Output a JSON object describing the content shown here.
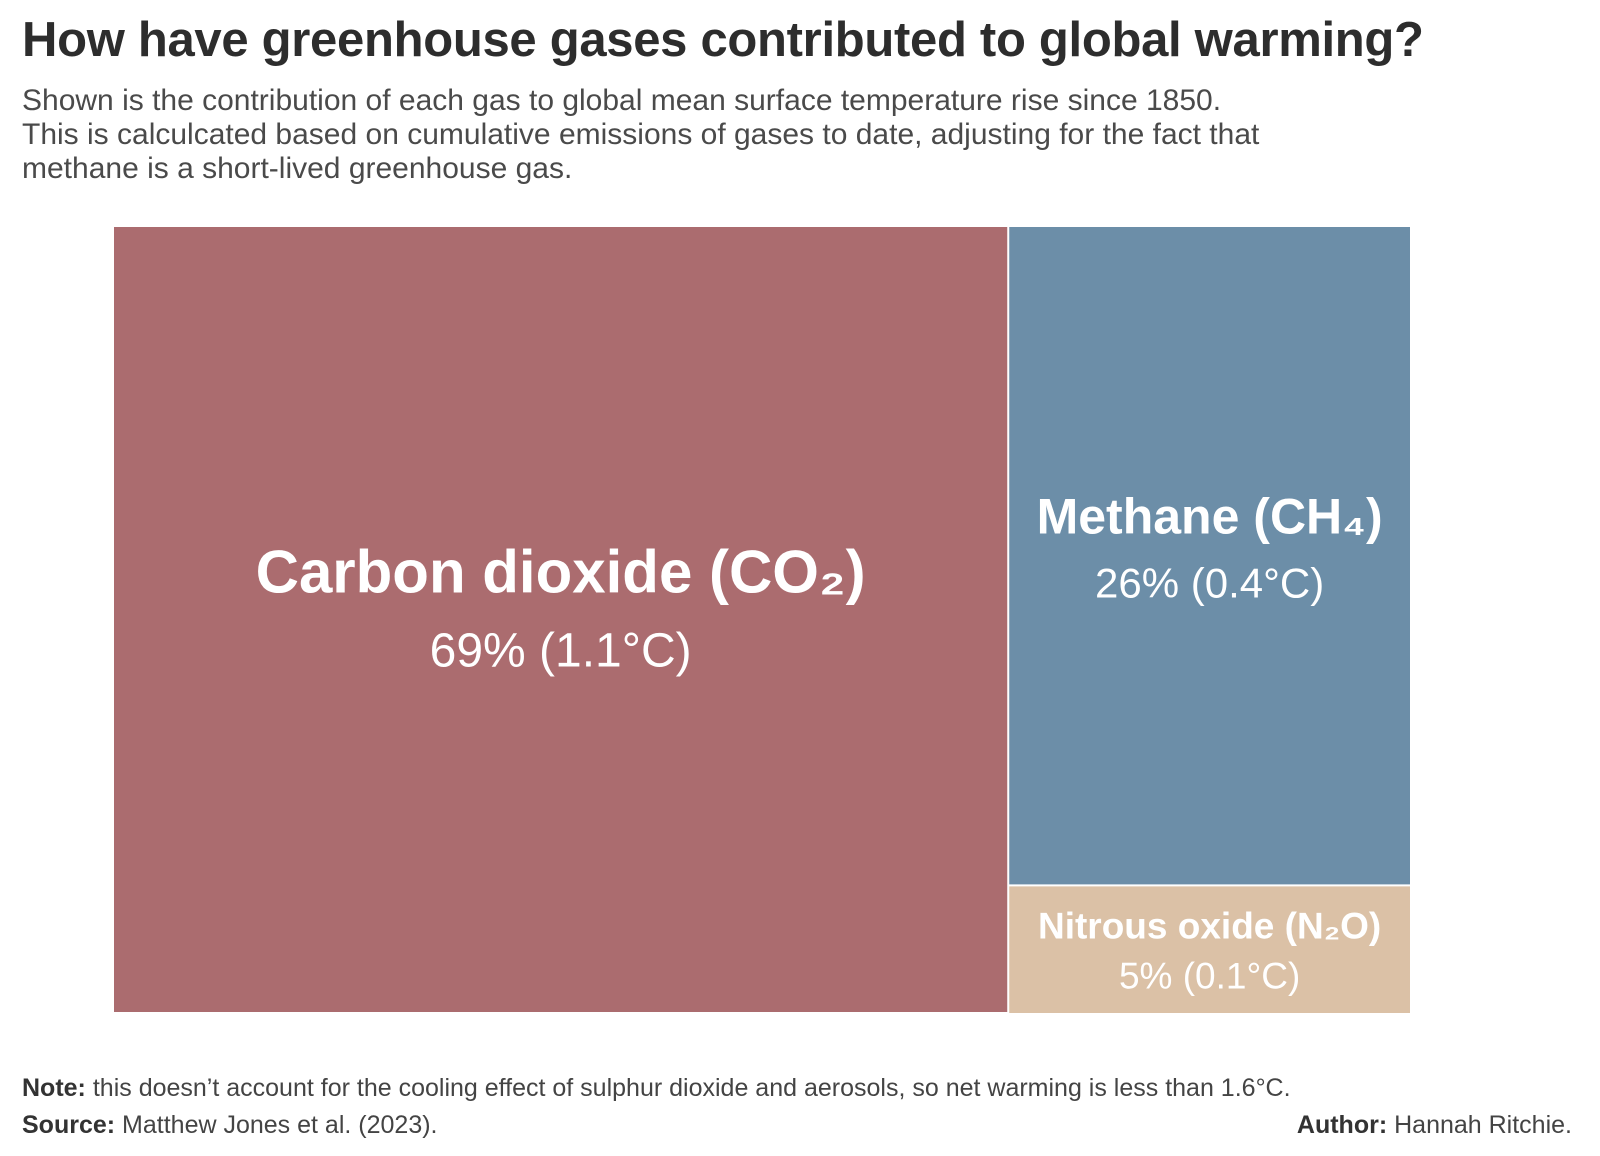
{
  "title": "How have greenhouse gases contributed to global warming?",
  "subtitle": [
    "Shown is the contribution of each gas to global mean surface temperature rise since 1850.",
    "This is calculcated based on cumulative emissions of gases to date, adjusting for the fact that",
    "methane is a short-lived greenhouse gas."
  ],
  "chart_data": {
    "type": "treemap",
    "unit": "%",
    "items": [
      {
        "name": "Carbon dioxide (CO₂)",
        "value": 69,
        "warming": "1.1°C",
        "label": "69% (1.1°C)",
        "color": "#ab6c6f"
      },
      {
        "name": "Methane (CH₄)",
        "value": 26,
        "warming": "0.4°C",
        "label": "26% (0.4°C)",
        "color": "#6c8ea8"
      },
      {
        "name": "Nitrous oxide (N₂O)",
        "value": 5,
        "warming": "0.1°C",
        "label": "5% (0.1°C)",
        "color": "#dbc1a6"
      }
    ]
  },
  "footer": {
    "note_label": "Note:",
    "note_text": "this doesn’t account for the cooling effect of sulphur dioxide and aerosols, so net warming is less than 1.6°C.",
    "source_label": "Source:",
    "source_text": "Matthew Jones et al. (2023).",
    "author_label": "Author:",
    "author_text": "Hannah Ritchie."
  }
}
